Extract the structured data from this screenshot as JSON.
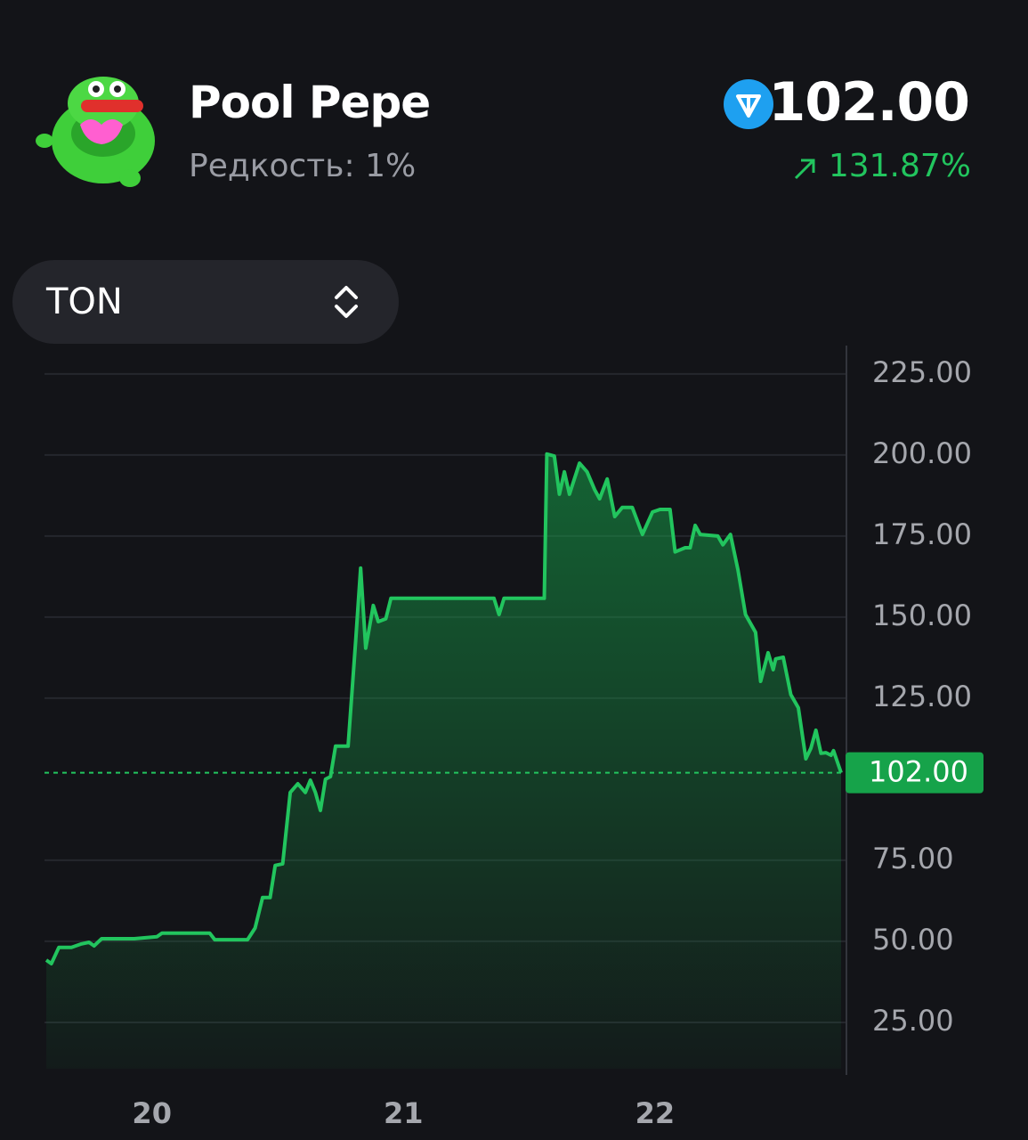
{
  "header": {
    "title": "Pool Pepe",
    "subtitle": "Редкость: 1%",
    "price": "102.00",
    "change": "131.87%"
  },
  "selector": {
    "label": "TON"
  },
  "chart_data": {
    "type": "area",
    "color": "#22c55e",
    "grid": true,
    "xlim": [
      19.58,
      22.74
    ],
    "ylim": [
      10.7,
      233.2
    ],
    "xticks": [
      20,
      21,
      22
    ],
    "yticks": [
      {
        "value": 25,
        "label": "25.00"
      },
      {
        "value": 50,
        "label": "50.00"
      },
      {
        "value": 75,
        "label": "75.00"
      },
      {
        "value": 125,
        "label": "125.00"
      },
      {
        "value": 150,
        "label": "150.00"
      },
      {
        "value": 175,
        "label": "175.00"
      },
      {
        "value": 200,
        "label": "200.00"
      },
      {
        "value": 225,
        "label": "225.00"
      }
    ],
    "last_price": {
      "value": 102,
      "label": "102.00"
    },
    "x": [
      19.58,
      19.6,
      19.63,
      19.68,
      19.72,
      19.75,
      19.77,
      19.8,
      19.93,
      20.02,
      20.04,
      20.23,
      20.25,
      20.38,
      20.41,
      20.44,
      20.47,
      20.49,
      20.52,
      20.55,
      20.58,
      20.61,
      20.63,
      20.65,
      20.67,
      20.69,
      20.71,
      20.73,
      20.78,
      20.81,
      20.83,
      20.85,
      20.88,
      20.9,
      20.93,
      20.95,
      21.36,
      21.38,
      21.4,
      21.56,
      21.57,
      21.6,
      21.62,
      21.64,
      21.66,
      21.7,
      21.73,
      21.76,
      21.78,
      21.81,
      21.84,
      21.87,
      21.91,
      21.95,
      21.99,
      22.02,
      22.06,
      22.08,
      22.12,
      22.14,
      22.16,
      22.18,
      22.25,
      22.27,
      22.3,
      22.33,
      22.36,
      22.4,
      22.42,
      22.45,
      22.47,
      22.48,
      22.51,
      22.54,
      22.57,
      22.6,
      22.62,
      22.64,
      22.66,
      22.68,
      22.7,
      22.71,
      22.74
    ],
    "values": [
      44.2,
      43.1,
      48.1,
      48.1,
      49.2,
      49.7,
      48.6,
      50.8,
      50.8,
      51.4,
      52.5,
      52.5,
      50.5,
      50.5,
      54.1,
      63.5,
      63.5,
      73.4,
      73.9,
      95.9,
      98.6,
      95.9,
      99.7,
      95.9,
      90.4,
      100,
      100.8,
      110.2,
      110.2,
      142.6,
      165.1,
      140.4,
      153.6,
      148.6,
      149.5,
      155.8,
      155.8,
      150.8,
      155.8,
      155.8,
      200.3,
      199.7,
      187.9,
      194.8,
      187.9,
      197.5,
      194.8,
      189.3,
      186.5,
      192.6,
      181,
      183.8,
      183.8,
      175.5,
      182.4,
      183.2,
      183.2,
      170.1,
      171.4,
      171.4,
      178.3,
      175.5,
      175,
      172.3,
      175.5,
      164.6,
      150.8,
      145.3,
      130.2,
      139,
      133.8,
      137.1,
      137.6,
      126.1,
      122,
      106.3,
      109.6,
      115.1,
      108,
      108.2,
      107.4,
      108.8,
      102
    ]
  }
}
